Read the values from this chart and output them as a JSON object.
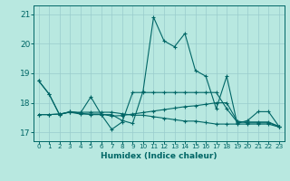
{
  "title": "",
  "xlabel": "Humidex (Indice chaleur)",
  "xlim": [
    -0.5,
    23.5
  ],
  "ylim": [
    16.7,
    21.3
  ],
  "yticks": [
    17,
    18,
    19,
    20,
    21
  ],
  "xticks": [
    0,
    1,
    2,
    3,
    4,
    5,
    6,
    7,
    8,
    9,
    10,
    11,
    12,
    13,
    14,
    15,
    16,
    17,
    18,
    19,
    20,
    21,
    22,
    23
  ],
  "background_color": "#b8e8e0",
  "grid_color": "#99cccc",
  "line_color": "#006666",
  "series": [
    [
      18.75,
      18.3,
      17.6,
      17.7,
      17.65,
      18.2,
      17.6,
      17.6,
      17.4,
      17.3,
      18.4,
      20.9,
      20.1,
      19.9,
      20.35,
      19.1,
      18.9,
      17.8,
      18.9,
      17.3,
      17.4,
      17.7,
      17.7,
      17.2
    ],
    [
      18.75,
      18.3,
      17.6,
      17.7,
      17.65,
      17.6,
      17.6,
      17.1,
      17.35,
      18.35,
      18.35,
      18.35,
      18.35,
      18.35,
      18.35,
      18.35,
      18.35,
      18.35,
      17.8,
      17.35,
      17.35,
      17.35,
      17.35,
      17.2
    ],
    [
      17.6,
      17.6,
      17.62,
      17.68,
      17.62,
      17.62,
      17.62,
      17.55,
      17.57,
      17.62,
      17.67,
      17.72,
      17.77,
      17.82,
      17.87,
      17.9,
      17.95,
      18.0,
      18.0,
      17.38,
      17.32,
      17.32,
      17.32,
      17.2
    ],
    [
      17.6,
      17.6,
      17.62,
      17.68,
      17.68,
      17.68,
      17.68,
      17.68,
      17.63,
      17.58,
      17.58,
      17.53,
      17.48,
      17.43,
      17.38,
      17.38,
      17.33,
      17.28,
      17.28,
      17.28,
      17.28,
      17.28,
      17.28,
      17.18
    ]
  ]
}
